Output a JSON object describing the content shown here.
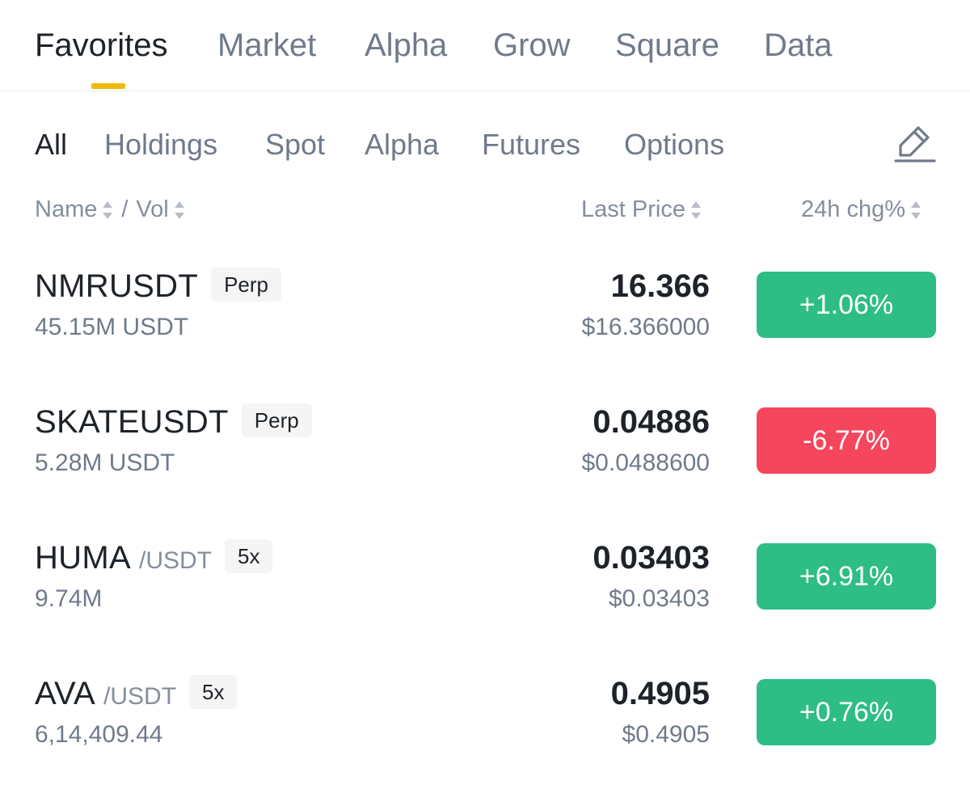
{
  "top_tabs": [
    {
      "label": "Favorites",
      "active": true
    },
    {
      "label": "Market",
      "active": false
    },
    {
      "label": "Alpha",
      "active": false
    },
    {
      "label": "Grow",
      "active": false
    },
    {
      "label": "Square",
      "active": false
    },
    {
      "label": "Data",
      "active": false
    }
  ],
  "sub_tabs": [
    {
      "label": "All",
      "active": true
    },
    {
      "label": "Holdings",
      "active": false
    },
    {
      "label": "Spot",
      "active": false
    },
    {
      "label": "Alpha",
      "active": false
    },
    {
      "label": "Futures",
      "active": false
    },
    {
      "label": "Options",
      "active": false
    }
  ],
  "edit_icon": "pencil-icon",
  "columns": {
    "name": "Name",
    "separator": "/",
    "vol": "Vol",
    "last_price": "Last Price",
    "change": "24h chg%"
  },
  "colors": {
    "accent": "#f0b90b",
    "up": "#2ebd85",
    "down": "#f6465d"
  },
  "rows": [
    {
      "symbol": "NMRUSDT",
      "quote": "",
      "tag": "Perp",
      "volume": "45.15M USDT",
      "price": "16.366",
      "usd_price": "$16.366000",
      "change": "+1.06%",
      "direction": "up"
    },
    {
      "symbol": "SKATEUSDT",
      "quote": "",
      "tag": "Perp",
      "volume": "5.28M USDT",
      "price": "0.04886",
      "usd_price": "$0.0488600",
      "change": "-6.77%",
      "direction": "down"
    },
    {
      "symbol": "HUMA",
      "quote": "/USDT",
      "tag": "5x",
      "volume": "9.74M",
      "price": "0.03403",
      "usd_price": "$0.03403",
      "change": "+6.91%",
      "direction": "up"
    },
    {
      "symbol": "AVA",
      "quote": "/USDT",
      "tag": "5x",
      "volume": "6,14,409.44",
      "price": "0.4905",
      "usd_price": "$0.4905",
      "change": "+0.76%",
      "direction": "up"
    }
  ]
}
